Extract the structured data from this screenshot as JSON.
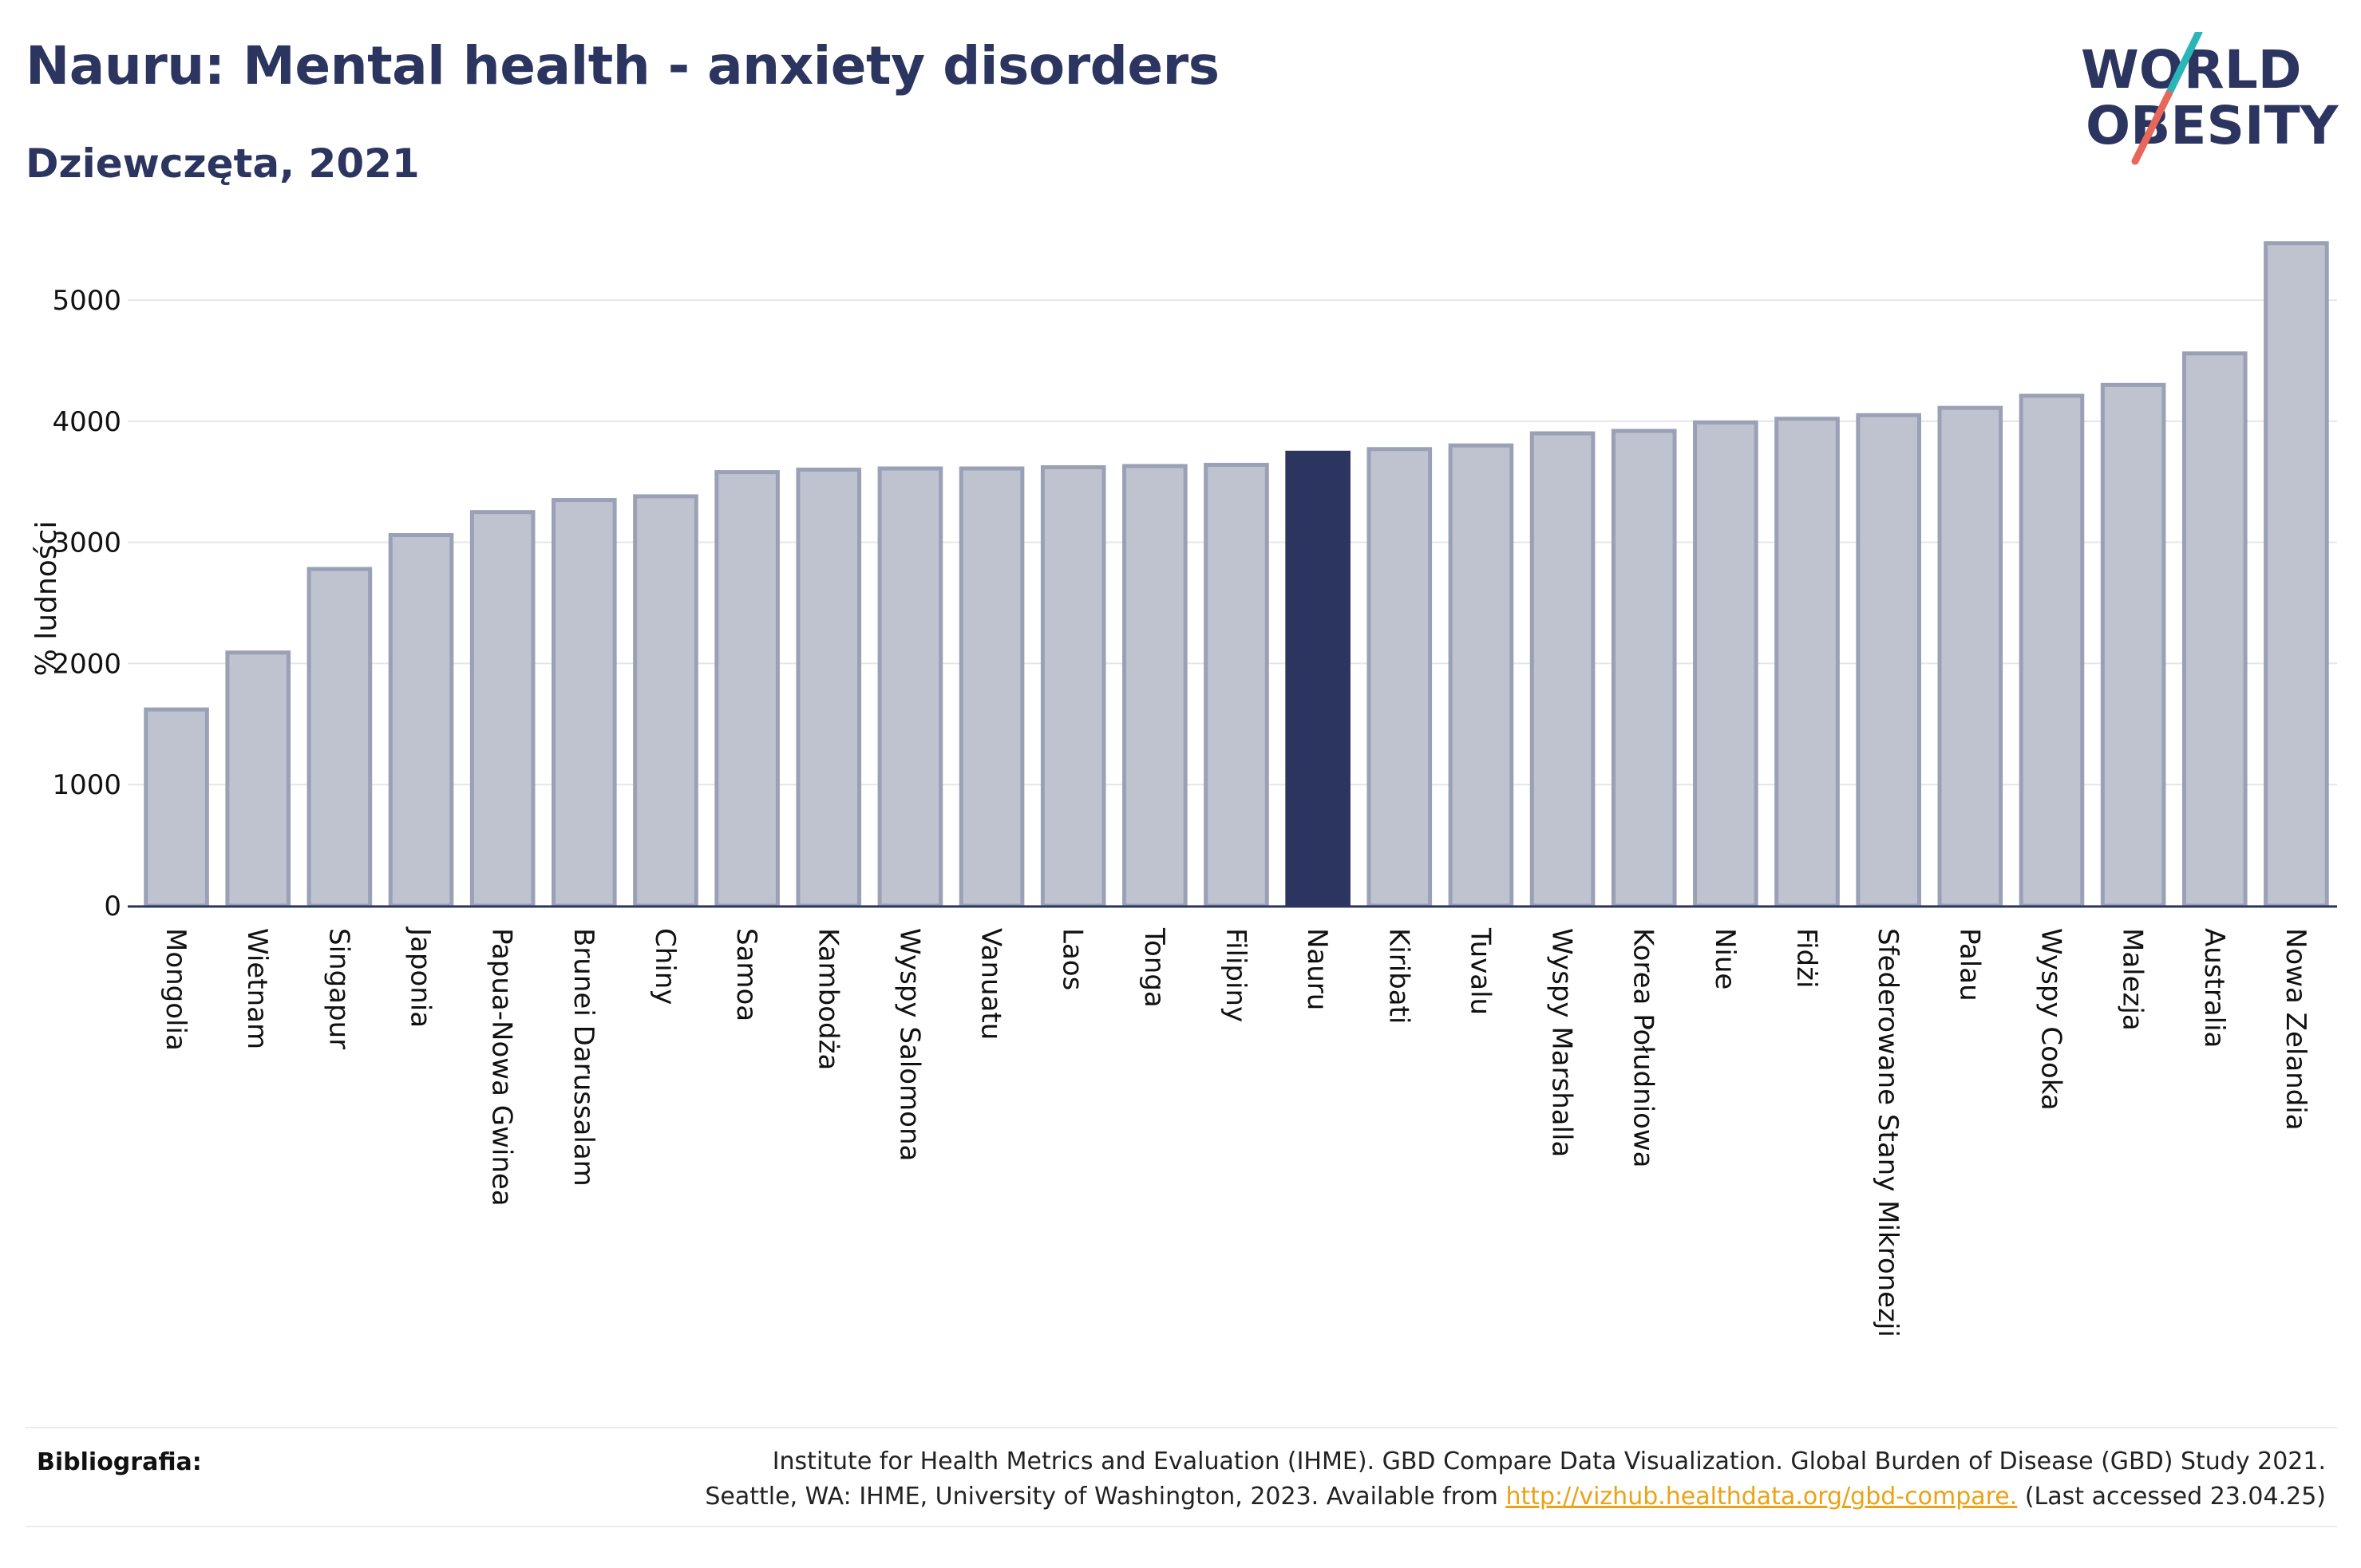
{
  "header": {
    "title": "Nauru: Mental health - anxiety disorders",
    "subtitle": "Dziewczęta, 2021"
  },
  "logo": {
    "line1": "WORLD",
    "line2": "OBESITY",
    "colors": {
      "text": "#2c3560",
      "slash_teal": "#2bb5b8",
      "slash_red": "#e8665a"
    }
  },
  "colors": {
    "bar_fill": "#bfc3cf",
    "bar_stroke": "#9aa0b6",
    "highlight": "#2c3560",
    "grid": "#e6e6e6",
    "axis": "#2c3560"
  },
  "chart_data": {
    "type": "bar",
    "ylabel": "% ludności",
    "ylim": [
      0,
      5600
    ],
    "yticks": [
      0,
      1000,
      2000,
      3000,
      4000,
      5000
    ],
    "grid": true,
    "highlight": "Nauru",
    "categories": [
      "Mongolia",
      "Wietnam",
      "Singapur",
      "Japonia",
      "Papua-Nowa Gwinea",
      "Brunei Darussalam",
      "Chiny",
      "Samoa",
      "Kambodża",
      "Wyspy Salomona",
      "Vanuatu",
      "Laos",
      "Tonga",
      "Filipiny",
      "Nauru",
      "Kiribati",
      "Tuvalu",
      "Wyspy Marshalla",
      "Korea Południowa",
      "Niue",
      "Fidżi",
      "Sfederowane Stany Mikronezji",
      "Palau",
      "Wyspy Cooka",
      "Malezja",
      "Australia",
      "Nowa Zelandia"
    ],
    "values": [
      1620,
      2090,
      2780,
      3060,
      3250,
      3350,
      3380,
      3580,
      3600,
      3610,
      3610,
      3620,
      3630,
      3640,
      3740,
      3770,
      3800,
      3900,
      3920,
      3990,
      4020,
      4050,
      4110,
      4210,
      4300,
      4560,
      5470
    ]
  },
  "footer": {
    "label": "Bibliografia:",
    "line1": "Institute for Health Metrics and Evaluation (IHME). GBD Compare Data Visualization. Global Burden of Disease (GBD) Study 2021.",
    "line2_prefix": "Seattle, WA: IHME, University of Washington, 2023. Available from ",
    "link": "http://vizhub.healthdata.org/gbd-compare.",
    "line2_suffix": " (Last accessed 23.04.25)"
  }
}
